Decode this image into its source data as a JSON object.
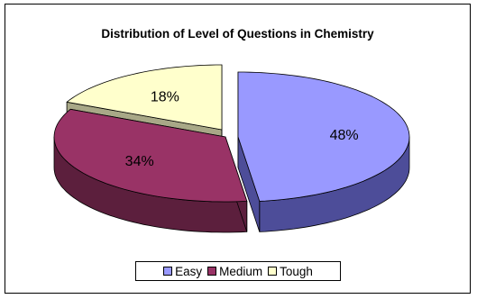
{
  "chart_data": {
    "type": "pie",
    "title": "Distribution of Level of Questions in Chemistry",
    "categories": [
      "Easy",
      "Medium",
      "Tough"
    ],
    "values": [
      48,
      34,
      18
    ],
    "labels": [
      "48%",
      "34%",
      "18%"
    ],
    "colors": [
      "#9999ff",
      "#993366",
      "#ffffcc"
    ],
    "side_colors": [
      "#4d4d99",
      "#5c1f3d",
      "#a8a887"
    ],
    "exploded": true,
    "three_d": true,
    "legend_position": "bottom"
  }
}
